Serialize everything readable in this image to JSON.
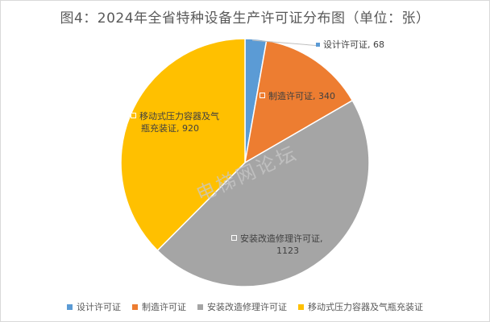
{
  "title": "图4：2024年全省特种设备生产许可证分布图（单位：张）",
  "watermark": "电梯网论坛",
  "chart_data": {
    "type": "pie",
    "title": "图4：2024年全省特种设备生产许可证分布图（单位：张）",
    "legend_position": "bottom",
    "slices": [
      {
        "name": "设计许可证",
        "value": 68,
        "color": "#5b9bd5",
        "label_text": "设计许可证, 68"
      },
      {
        "name": "制造许可证",
        "value": 340,
        "color": "#ed7d31",
        "label_text": "制造许可证, 340"
      },
      {
        "name": "安装改造修理许可证",
        "value": 1123,
        "color": "#a5a5a5",
        "label_lines": [
          "安装改造修理许可证,",
          "1123"
        ]
      },
      {
        "name": "移动式压力容器及气瓶充装证",
        "value": 920,
        "color": "#ffc000",
        "label_lines": [
          "移动式压力容器及气",
          "瓶充装证, 920"
        ]
      }
    ]
  }
}
